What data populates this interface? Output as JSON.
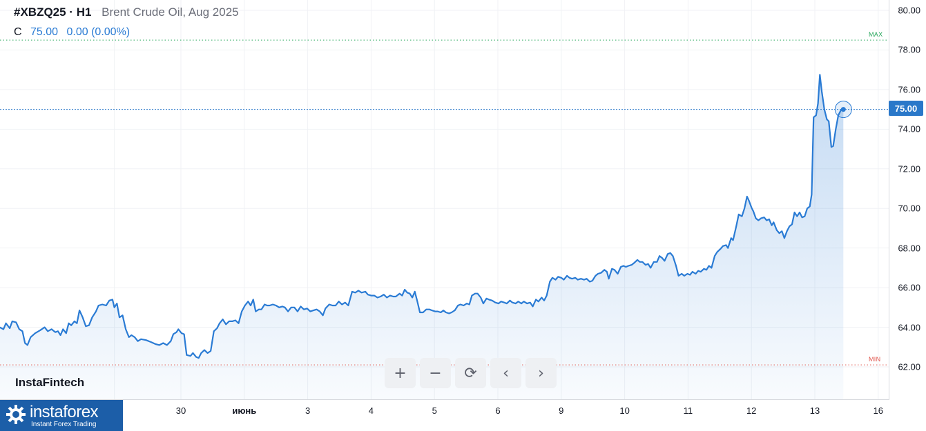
{
  "header": {
    "symbol": "#XBZQ25 · H1",
    "description": "Brent Crude Oil, Aug 2025",
    "ohlc_label": "C",
    "close": "75.00",
    "change": "0.00 (0.00%)"
  },
  "markers": {
    "max": "MAX",
    "min": "MIN",
    "max_value": 78.5,
    "min_value": 62.1
  },
  "last_price": "75.00",
  "watermark": "InstaFintech",
  "toolbar": {
    "zoom_in": "+",
    "zoom_out": "−",
    "reset": "⟳",
    "prev": "‹",
    "next": "›"
  },
  "logo": {
    "name": "instaforex",
    "tagline": "Instant Forex Trading"
  },
  "colors": {
    "line": "#2a7bd4",
    "badge": "#2a78c9",
    "max": "#26a65b",
    "min": "#e0534a",
    "logo": "#1c5ea8"
  },
  "chart_data": {
    "type": "area",
    "title": "Brent Crude Oil, Aug 2025",
    "xlabel": "",
    "ylabel": "",
    "ylim": [
      60.5,
      80.5
    ],
    "yticks": [
      "62.00",
      "64.00",
      "66.00",
      "68.00",
      "70.00",
      "72.00",
      "74.00",
      "76.00",
      "78.00",
      "80.00"
    ],
    "xticks": [
      {
        "label": "",
        "t": -1.05
      },
      {
        "label": "30",
        "t": 0
      },
      {
        "label": "июнь",
        "t": 1
      },
      {
        "label": "3",
        "t": 2
      },
      {
        "label": "4",
        "t": 3
      },
      {
        "label": "5",
        "t": 4
      },
      {
        "label": "6",
        "t": 5
      },
      {
        "label": "9",
        "t": 6
      },
      {
        "label": "10",
        "t": 7
      },
      {
        "label": "11",
        "t": 8
      },
      {
        "label": "12",
        "t": 9
      },
      {
        "label": "13",
        "t": 10
      },
      {
        "label": "16",
        "t": 11
      }
    ],
    "series": [
      {
        "points": [
          [
            -2.86,
            64.0
          ],
          [
            -2.8,
            63.9
          ],
          [
            -2.76,
            64.2
          ],
          [
            -2.7,
            63.95
          ],
          [
            -2.66,
            64.3
          ],
          [
            -2.6,
            64.25
          ],
          [
            -2.55,
            63.9
          ],
          [
            -2.5,
            63.8
          ],
          [
            -2.46,
            63.2
          ],
          [
            -2.42,
            63.1
          ],
          [
            -2.37,
            63.5
          ],
          [
            -2.3,
            63.7
          ],
          [
            -2.22,
            63.85
          ],
          [
            -2.15,
            64.0
          ],
          [
            -2.1,
            63.8
          ],
          [
            -2.04,
            63.9
          ],
          [
            -1.98,
            63.75
          ],
          [
            -1.94,
            63.8
          ],
          [
            -1.9,
            63.6
          ],
          [
            -1.86,
            63.9
          ],
          [
            -1.81,
            63.7
          ],
          [
            -1.77,
            64.2
          ],
          [
            -1.73,
            64.1
          ],
          [
            -1.68,
            64.3
          ],
          [
            -1.64,
            64.2
          ],
          [
            -1.6,
            64.85
          ],
          [
            -1.55,
            64.5
          ],
          [
            -1.5,
            64.05
          ],
          [
            -1.45,
            64.1
          ],
          [
            -1.4,
            64.5
          ],
          [
            -1.34,
            64.8
          ],
          [
            -1.3,
            65.1
          ],
          [
            -1.24,
            65.15
          ],
          [
            -1.18,
            65.1
          ],
          [
            -1.13,
            65.35
          ],
          [
            -1.08,
            65.4
          ],
          [
            -1.05,
            65.0
          ],
          [
            -1.01,
            65.2
          ],
          [
            -0.97,
            64.5
          ],
          [
            -0.92,
            64.6
          ],
          [
            -0.87,
            63.9
          ],
          [
            -0.82,
            63.5
          ],
          [
            -0.78,
            63.6
          ],
          [
            -0.73,
            63.5
          ],
          [
            -0.68,
            63.3
          ],
          [
            -0.63,
            63.4
          ],
          [
            -0.55,
            63.35
          ],
          [
            -0.47,
            63.25
          ],
          [
            -0.4,
            63.15
          ],
          [
            -0.34,
            63.1
          ],
          [
            -0.28,
            63.2
          ],
          [
            -0.22,
            63.1
          ],
          [
            -0.16,
            63.3
          ],
          [
            -0.12,
            63.65
          ],
          [
            -0.07,
            63.75
          ],
          [
            -0.04,
            63.9
          ],
          [
            0.01,
            63.7
          ],
          [
            0.05,
            63.65
          ],
          [
            0.09,
            62.6
          ],
          [
            0.15,
            62.55
          ],
          [
            0.19,
            62.7
          ],
          [
            0.24,
            62.5
          ],
          [
            0.28,
            62.45
          ],
          [
            0.32,
            62.7
          ],
          [
            0.37,
            62.85
          ],
          [
            0.42,
            62.7
          ],
          [
            0.47,
            62.8
          ],
          [
            0.52,
            63.8
          ],
          [
            0.57,
            63.95
          ],
          [
            0.61,
            64.2
          ],
          [
            0.66,
            64.4
          ],
          [
            0.71,
            64.15
          ],
          [
            0.76,
            64.3
          ],
          [
            0.81,
            64.3
          ],
          [
            0.86,
            64.35
          ],
          [
            0.91,
            64.2
          ],
          [
            0.96,
            64.8
          ],
          [
            1.01,
            65.1
          ],
          [
            1.06,
            65.3
          ],
          [
            1.1,
            65.1
          ],
          [
            1.14,
            65.4
          ],
          [
            1.18,
            64.8
          ],
          [
            1.23,
            64.9
          ],
          [
            1.27,
            64.9
          ],
          [
            1.32,
            65.15
          ],
          [
            1.36,
            65.1
          ],
          [
            1.4,
            65.1
          ],
          [
            1.45,
            65.15
          ],
          [
            1.5,
            65.1
          ],
          [
            1.55,
            65.0
          ],
          [
            1.6,
            65.05
          ],
          [
            1.64,
            65.0
          ],
          [
            1.69,
            64.8
          ],
          [
            1.74,
            65.0
          ],
          [
            1.79,
            65.0
          ],
          [
            1.84,
            64.8
          ],
          [
            1.89,
            65.05
          ],
          [
            1.94,
            64.9
          ],
          [
            1.99,
            64.95
          ],
          [
            2.04,
            64.8
          ],
          [
            2.09,
            64.85
          ],
          [
            2.14,
            64.9
          ],
          [
            2.19,
            64.8
          ],
          [
            2.24,
            64.6
          ],
          [
            2.28,
            64.95
          ],
          [
            2.34,
            65.15
          ],
          [
            2.39,
            65.1
          ],
          [
            2.44,
            65.1
          ],
          [
            2.49,
            65.3
          ],
          [
            2.54,
            65.15
          ],
          [
            2.59,
            65.25
          ],
          [
            2.64,
            65.1
          ],
          [
            2.7,
            65.8
          ],
          [
            2.75,
            65.75
          ],
          [
            2.8,
            65.85
          ],
          [
            2.85,
            65.75
          ],
          [
            2.91,
            65.8
          ],
          [
            2.95,
            65.65
          ],
          [
            3.0,
            65.6
          ],
          [
            3.05,
            65.6
          ],
          [
            3.1,
            65.5
          ],
          [
            3.15,
            65.55
          ],
          [
            3.2,
            65.65
          ],
          [
            3.25,
            65.5
          ],
          [
            3.3,
            65.6
          ],
          [
            3.35,
            65.55
          ],
          [
            3.39,
            65.55
          ],
          [
            3.45,
            65.7
          ],
          [
            3.49,
            65.6
          ],
          [
            3.53,
            65.9
          ],
          [
            3.57,
            65.75
          ],
          [
            3.61,
            65.7
          ],
          [
            3.65,
            65.5
          ],
          [
            3.69,
            65.8
          ],
          [
            3.73,
            65.3
          ],
          [
            3.77,
            64.75
          ],
          [
            3.82,
            64.75
          ],
          [
            3.87,
            64.9
          ],
          [
            3.92,
            64.9
          ],
          [
            3.96,
            64.85
          ],
          [
            4.01,
            64.8
          ],
          [
            4.05,
            64.8
          ],
          [
            4.1,
            64.75
          ],
          [
            4.14,
            64.85
          ],
          [
            4.18,
            64.75
          ],
          [
            4.23,
            64.7
          ],
          [
            4.27,
            64.75
          ],
          [
            4.32,
            64.85
          ],
          [
            4.37,
            65.1
          ],
          [
            4.41,
            65.15
          ],
          [
            4.46,
            65.1
          ],
          [
            4.51,
            65.2
          ],
          [
            4.55,
            65.15
          ],
          [
            4.59,
            65.6
          ],
          [
            4.64,
            65.7
          ],
          [
            4.68,
            65.7
          ],
          [
            4.73,
            65.5
          ],
          [
            4.77,
            65.2
          ],
          [
            4.82,
            65.45
          ],
          [
            4.86,
            65.4
          ],
          [
            4.91,
            65.35
          ],
          [
            4.96,
            65.25
          ],
          [
            5.01,
            65.2
          ],
          [
            5.05,
            65.3
          ],
          [
            5.1,
            65.25
          ],
          [
            5.14,
            65.2
          ],
          [
            5.19,
            65.35
          ],
          [
            5.23,
            65.25
          ],
          [
            5.28,
            65.2
          ],
          [
            5.32,
            65.3
          ],
          [
            5.37,
            65.2
          ],
          [
            5.41,
            65.3
          ],
          [
            5.46,
            65.2
          ],
          [
            5.51,
            65.25
          ],
          [
            5.55,
            65.05
          ],
          [
            5.6,
            65.4
          ],
          [
            5.64,
            65.3
          ],
          [
            5.69,
            65.5
          ],
          [
            5.73,
            65.35
          ],
          [
            5.77,
            65.6
          ],
          [
            5.82,
            66.3
          ],
          [
            5.86,
            66.5
          ],
          [
            5.91,
            66.4
          ],
          [
            5.95,
            66.55
          ],
          [
            6.0,
            66.5
          ],
          [
            6.04,
            66.4
          ],
          [
            6.09,
            66.6
          ],
          [
            6.13,
            66.5
          ],
          [
            6.17,
            66.45
          ],
          [
            6.22,
            66.5
          ],
          [
            6.26,
            66.4
          ],
          [
            6.31,
            66.45
          ],
          [
            6.36,
            66.4
          ],
          [
            6.4,
            66.45
          ],
          [
            6.45,
            66.3
          ],
          [
            6.49,
            66.35
          ],
          [
            6.54,
            66.6
          ],
          [
            6.58,
            66.7
          ],
          [
            6.63,
            66.75
          ],
          [
            6.68,
            66.9
          ],
          [
            6.72,
            66.8
          ],
          [
            6.75,
            66.45
          ],
          [
            6.8,
            66.95
          ],
          [
            6.84,
            66.9
          ],
          [
            6.89,
            66.7
          ],
          [
            6.94,
            67.05
          ],
          [
            6.98,
            67.1
          ],
          [
            7.02,
            67.05
          ],
          [
            7.06,
            67.1
          ],
          [
            7.11,
            67.15
          ],
          [
            7.15,
            67.25
          ],
          [
            7.2,
            67.4
          ],
          [
            7.24,
            67.3
          ],
          [
            7.28,
            67.3
          ],
          [
            7.33,
            67.15
          ],
          [
            7.37,
            67.2
          ],
          [
            7.41,
            67.0
          ],
          [
            7.46,
            67.3
          ],
          [
            7.51,
            67.3
          ],
          [
            7.55,
            67.6
          ],
          [
            7.59,
            67.5
          ],
          [
            7.63,
            67.35
          ],
          [
            7.68,
            67.7
          ],
          [
            7.72,
            67.75
          ],
          [
            7.76,
            67.6
          ],
          [
            7.81,
            67.1
          ],
          [
            7.85,
            66.6
          ],
          [
            7.9,
            66.7
          ],
          [
            7.94,
            66.6
          ],
          [
            7.99,
            66.7
          ],
          [
            8.03,
            66.65
          ],
          [
            8.07,
            66.8
          ],
          [
            8.12,
            66.7
          ],
          [
            8.16,
            66.85
          ],
          [
            8.2,
            66.8
          ],
          [
            8.25,
            66.95
          ],
          [
            8.29,
            66.9
          ],
          [
            8.33,
            67.1
          ],
          [
            8.37,
            67.0
          ],
          [
            8.42,
            67.6
          ],
          [
            8.46,
            67.8
          ],
          [
            8.51,
            67.95
          ],
          [
            8.55,
            68.1
          ],
          [
            8.6,
            68.15
          ],
          [
            8.63,
            68.0
          ],
          [
            8.68,
            68.5
          ],
          [
            8.71,
            68.4
          ],
          [
            8.76,
            69.1
          ],
          [
            8.8,
            69.7
          ],
          [
            8.85,
            69.6
          ],
          [
            8.89,
            70.0
          ],
          [
            8.93,
            70.6
          ],
          [
            8.96,
            70.4
          ],
          [
            9.0,
            70.05
          ],
          [
            9.03,
            69.85
          ],
          [
            9.07,
            69.5
          ],
          [
            9.11,
            69.4
          ],
          [
            9.15,
            69.5
          ],
          [
            9.2,
            69.55
          ],
          [
            9.24,
            69.4
          ],
          [
            9.28,
            69.45
          ],
          [
            9.32,
            69.15
          ],
          [
            9.35,
            69.3
          ],
          [
            9.4,
            68.9
          ],
          [
            9.44,
            68.75
          ],
          [
            9.48,
            68.85
          ],
          [
            9.52,
            68.5
          ],
          [
            9.56,
            68.85
          ],
          [
            9.6,
            69.1
          ],
          [
            9.64,
            69.2
          ],
          [
            9.68,
            69.8
          ],
          [
            9.72,
            69.6
          ],
          [
            9.76,
            69.8
          ],
          [
            9.8,
            69.55
          ],
          [
            9.84,
            69.6
          ],
          [
            9.88,
            70.0
          ],
          [
            9.92,
            70.1
          ],
          [
            9.95,
            70.7
          ],
          [
            9.98,
            74.6
          ],
          [
            10.02,
            74.7
          ],
          [
            10.05,
            75.3
          ],
          [
            10.08,
            76.75
          ],
          [
            10.11,
            75.9
          ],
          [
            10.15,
            75.0
          ],
          [
            10.19,
            74.5
          ],
          [
            10.22,
            74.4
          ],
          [
            10.26,
            73.1
          ],
          [
            10.29,
            73.15
          ],
          [
            10.33,
            74.0
          ],
          [
            10.37,
            74.7
          ],
          [
            10.41,
            74.95
          ],
          [
            10.45,
            75.0
          ]
        ]
      }
    ]
  }
}
